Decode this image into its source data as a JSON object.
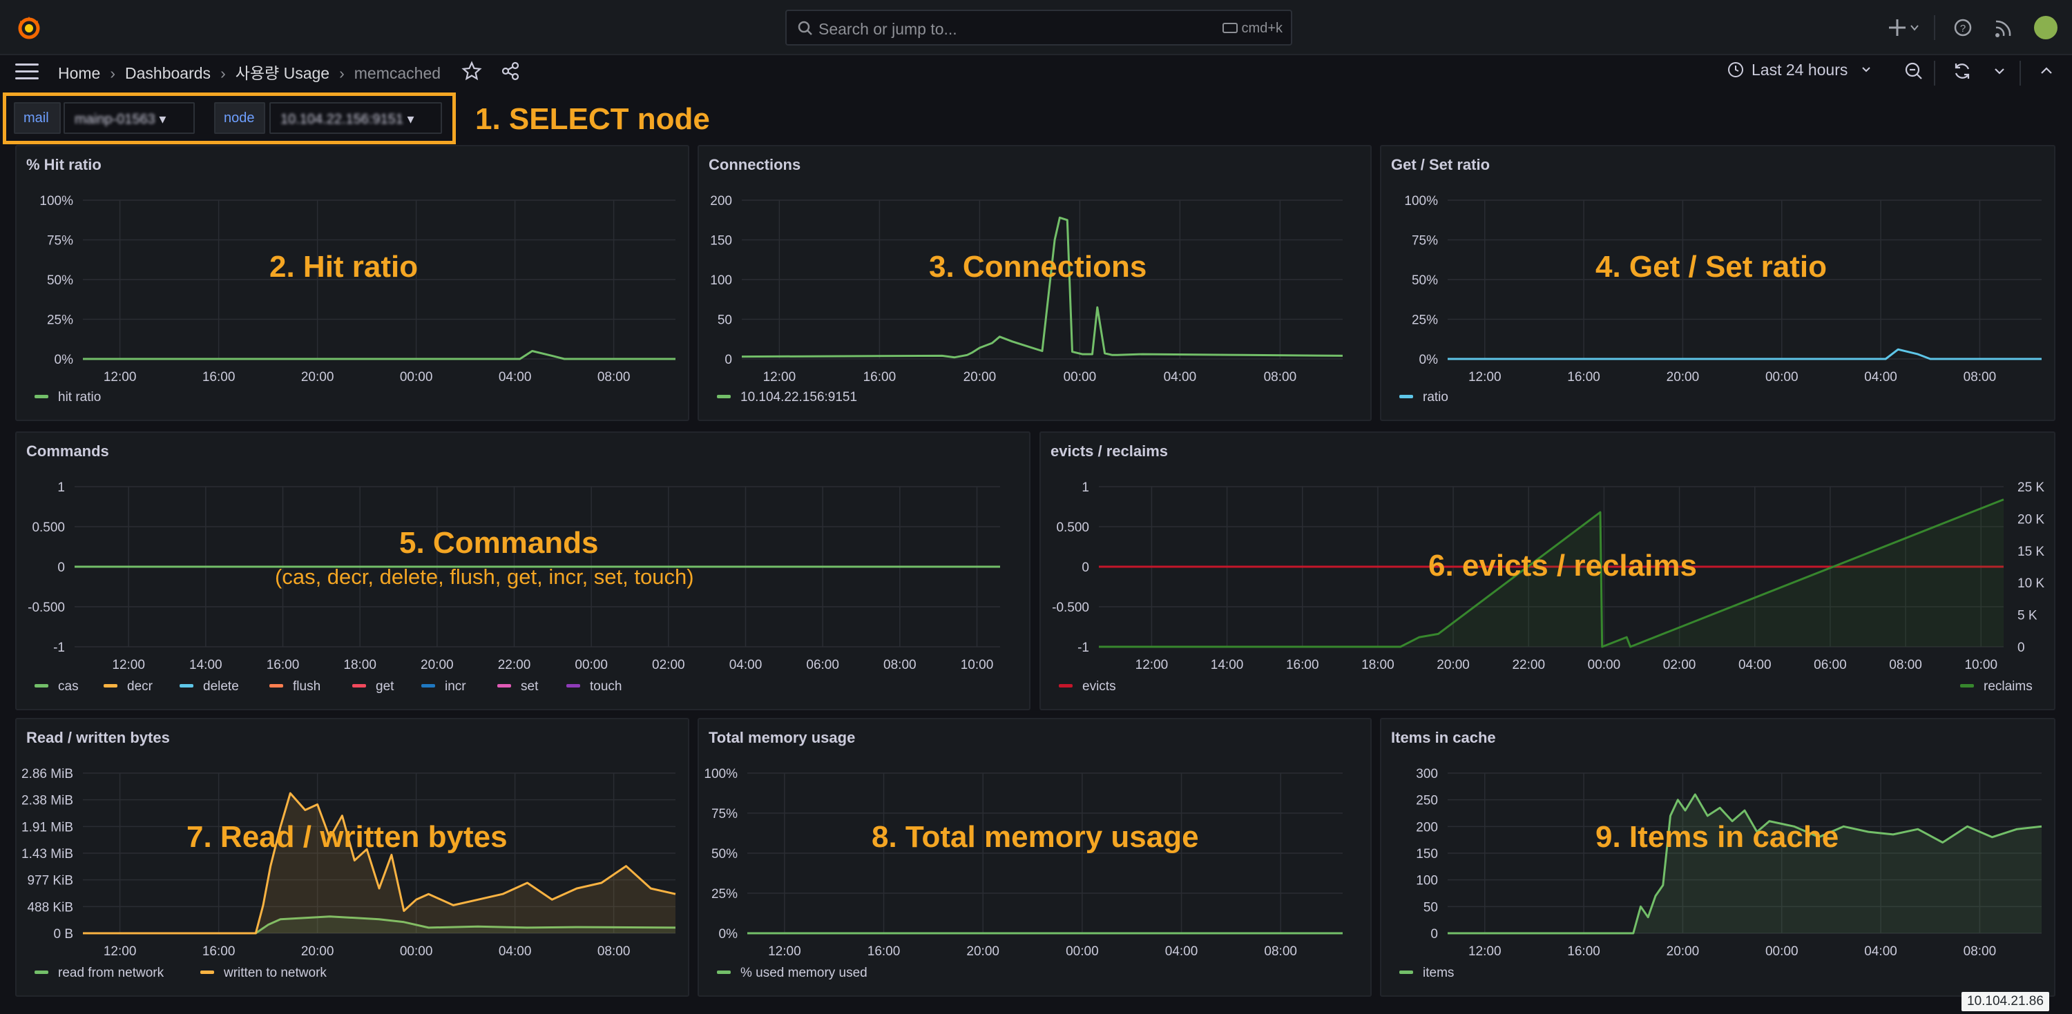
{
  "topbar": {
    "search_placeholder": "Search or jump to...",
    "search_shortcut": "cmd+k"
  },
  "breadcrumb": [
    "Home",
    "Dashboards",
    "사용량 Usage",
    "memcached"
  ],
  "time_range": "Last 24 hours",
  "variables": [
    {
      "label": "mail",
      "value": "mainp-01563"
    },
    {
      "label": "node",
      "value": "10.104.22.156:9151"
    }
  ],
  "annotations": {
    "select_node": "1. SELECT node",
    "hit_ratio": "2. Hit ratio",
    "connections": "3. Connections",
    "get_set": "4. Get / Set ratio",
    "commands": "5. Commands",
    "commands_sub": "(cas, decr, delete, flush, get, incr, set, touch)",
    "evicts": "6. evicts / reclaims",
    "bytes": "7. Read / written bytes",
    "memory": "8. Total memory usage",
    "items": "9. Items in cache"
  },
  "tooltip": "10.104.21.86",
  "colors": {
    "green": "#73bf69",
    "orange": "#fab342",
    "cyan": "#5ec6e8",
    "red": "#f2495c",
    "darkred": "#c4162a",
    "blue": "#1f78c1",
    "pink": "#e05ab5",
    "purple": "#8f3bb8",
    "coral": "#ff7f50",
    "darkgreen": "#37872d",
    "annotation": "#f5a623"
  },
  "chart_data": [
    {
      "id": "hit_ratio",
      "type": "line",
      "title": "% Hit ratio",
      "y_ticks": [
        "100%",
        "75%",
        "50%",
        "25%",
        "0%"
      ],
      "ylim": [
        0,
        100
      ],
      "x_ticks": [
        "12:00",
        "16:00",
        "20:00",
        "00:00",
        "04:00",
        "08:00"
      ],
      "legend": "bottom-left",
      "series": [
        {
          "name": "hit ratio",
          "color": "green",
          "x": [
            0,
            17.7,
            18.2,
            19,
            19.5,
            24
          ],
          "y": [
            0,
            0,
            5,
            2,
            0,
            0
          ]
        }
      ]
    },
    {
      "id": "connections",
      "type": "line",
      "title": "Connections",
      "y_ticks": [
        "200",
        "150",
        "100",
        "50",
        "0"
      ],
      "ylim": [
        0,
        200
      ],
      "x_ticks": [
        "12:00",
        "16:00",
        "20:00",
        "00:00",
        "04:00",
        "08:00"
      ],
      "legend": "bottom-left",
      "series": [
        {
          "name": "10.104.22.156:9151",
          "color": "green",
          "x": [
            0,
            8,
            8.5,
            9,
            9.2,
            9.5,
            10,
            10.3,
            10.8,
            11.2,
            12,
            12.5,
            12.7,
            13,
            13.2,
            13.6,
            14,
            14.2,
            14.5,
            14.8,
            15,
            16,
            20,
            24
          ],
          "y": [
            3,
            4,
            2,
            5,
            8,
            14,
            20,
            28,
            22,
            18,
            10,
            150,
            178,
            175,
            9,
            6,
            6,
            65,
            7,
            5,
            5,
            6,
            5,
            4
          ]
        }
      ]
    },
    {
      "id": "get_set",
      "type": "line",
      "title": "Get / Set ratio",
      "y_ticks": [
        "100%",
        "75%",
        "50%",
        "25%",
        "0%"
      ],
      "ylim": [
        0,
        100
      ],
      "x_ticks": [
        "12:00",
        "16:00",
        "20:00",
        "00:00",
        "04:00",
        "08:00"
      ],
      "legend": "bottom-left",
      "series": [
        {
          "name": "ratio",
          "color": "cyan",
          "x": [
            0,
            17.7,
            18.2,
            19,
            19.5,
            24
          ],
          "y": [
            0,
            0,
            6,
            3,
            0,
            0
          ]
        }
      ]
    },
    {
      "id": "commands",
      "type": "line",
      "title": "Commands",
      "y_ticks": [
        "1",
        "0.500",
        "0",
        "-0.500",
        "-1"
      ],
      "ylim": [
        -1,
        1
      ],
      "x_ticks": [
        "12:00",
        "14:00",
        "16:00",
        "18:00",
        "20:00",
        "22:00",
        "00:00",
        "02:00",
        "04:00",
        "06:00",
        "08:00",
        "10:00"
      ],
      "legend": "bottom-left",
      "series": [
        {
          "name": "cas",
          "color": "green",
          "x": [
            0,
            24
          ],
          "y": [
            0,
            0
          ]
        },
        {
          "name": "decr",
          "color": "orange",
          "x": [],
          "y": []
        },
        {
          "name": "delete",
          "color": "cyan",
          "x": [],
          "y": []
        },
        {
          "name": "flush",
          "color": "coral",
          "x": [],
          "y": []
        },
        {
          "name": "get",
          "color": "red",
          "x": [],
          "y": []
        },
        {
          "name": "incr",
          "color": "blue",
          "x": [],
          "y": []
        },
        {
          "name": "set",
          "color": "pink",
          "x": [],
          "y": []
        },
        {
          "name": "touch",
          "color": "purple",
          "x": [],
          "y": []
        }
      ]
    },
    {
      "id": "evicts",
      "type": "line",
      "title": "evicts / reclaims",
      "y_ticks": [
        "1",
        "0.500",
        "0",
        "-0.500",
        "-1"
      ],
      "ylim": [
        -1,
        1
      ],
      "y2_ticks": [
        "25 K",
        "20 K",
        "15 K",
        "10 K",
        "5 K",
        "0"
      ],
      "y2lim": [
        0,
        25000
      ],
      "x_ticks": [
        "12:00",
        "14:00",
        "16:00",
        "18:00",
        "20:00",
        "22:00",
        "00:00",
        "02:00",
        "04:00",
        "06:00",
        "08:00",
        "10:00"
      ],
      "legend": "bottom-left and bottom-right",
      "series": [
        {
          "name": "evicts",
          "color": "darkred",
          "x": [
            0,
            24
          ],
          "y": [
            0,
            0
          ]
        },
        {
          "name": "reclaims",
          "color": "darkgreen",
          "axis": "right",
          "x": [
            0,
            8,
            8.5,
            9,
            13.3,
            13.35,
            14,
            14.1,
            24
          ],
          "y": [
            0,
            0,
            1500,
            2000,
            21000,
            0,
            1500,
            0,
            23000
          ]
        }
      ]
    },
    {
      "id": "bytes",
      "type": "line",
      "title": "Read / written bytes",
      "y_ticks": [
        "2.86 MiB",
        "2.38 MiB",
        "1.91 MiB",
        "1.43 MiB",
        "977 KiB",
        "488 KiB",
        "0 B"
      ],
      "ylim": [
        0,
        2.86
      ],
      "x_ticks": [
        "12:00",
        "16:00",
        "20:00",
        "00:00",
        "04:00",
        "08:00"
      ],
      "legend": "bottom-left",
      "series": [
        {
          "name": "read from network",
          "color": "green",
          "x": [
            0,
            7,
            7.5,
            8,
            10,
            12,
            13,
            14,
            16,
            18,
            20,
            24
          ],
          "y": [
            0,
            0,
            0.15,
            0.25,
            0.3,
            0.25,
            0.2,
            0.1,
            0.12,
            0.1,
            0.11,
            0.1
          ]
        },
        {
          "name": "written to network",
          "color": "orange",
          "x": [
            0,
            7,
            7.3,
            7.6,
            8,
            8.4,
            9,
            9.5,
            10,
            10.5,
            11,
            11.5,
            12,
            12.5,
            13,
            13.5,
            14,
            15,
            16,
            17,
            18,
            19,
            20,
            21,
            22,
            23,
            24
          ],
          "y": [
            0,
            0,
            0.5,
            1.2,
            1.9,
            2.5,
            2.2,
            2.3,
            1.7,
            2.1,
            1.3,
            1.5,
            0.8,
            1.4,
            0.4,
            0.6,
            0.7,
            0.5,
            0.6,
            0.7,
            0.9,
            0.6,
            0.8,
            0.9,
            1.2,
            0.8,
            0.7
          ]
        }
      ]
    },
    {
      "id": "memory",
      "type": "line",
      "title": "Total memory usage",
      "y_ticks": [
        "100%",
        "75%",
        "50%",
        "25%",
        "0%"
      ],
      "ylim": [
        0,
        100
      ],
      "x_ticks": [
        "12:00",
        "16:00",
        "20:00",
        "00:00",
        "04:00",
        "08:00"
      ],
      "legend": "bottom-left",
      "series": [
        {
          "name": "% used memory used",
          "color": "green",
          "x": [
            0,
            24
          ],
          "y": [
            0,
            0
          ]
        }
      ]
    },
    {
      "id": "items",
      "type": "area",
      "title": "Items in cache",
      "y_ticks": [
        "300",
        "250",
        "200",
        "150",
        "100",
        "50",
        "0"
      ],
      "ylim": [
        0,
        300
      ],
      "x_ticks": [
        "12:00",
        "16:00",
        "20:00",
        "00:00",
        "04:00",
        "08:00"
      ],
      "legend": "bottom-left",
      "series": [
        {
          "name": "items",
          "color": "green",
          "x": [
            0,
            7.5,
            7.8,
            8.1,
            8.4,
            8.7,
            9,
            9.3,
            9.6,
            10,
            10.5,
            11,
            11.5,
            12,
            12.5,
            13,
            14,
            15,
            16,
            17,
            18,
            19,
            20,
            21,
            22,
            23,
            24
          ],
          "y": [
            0,
            0,
            50,
            30,
            70,
            90,
            220,
            250,
            230,
            260,
            220,
            235,
            210,
            230,
            190,
            210,
            200,
            180,
            200,
            190,
            185,
            195,
            170,
            200,
            180,
            195,
            200
          ]
        }
      ]
    }
  ]
}
